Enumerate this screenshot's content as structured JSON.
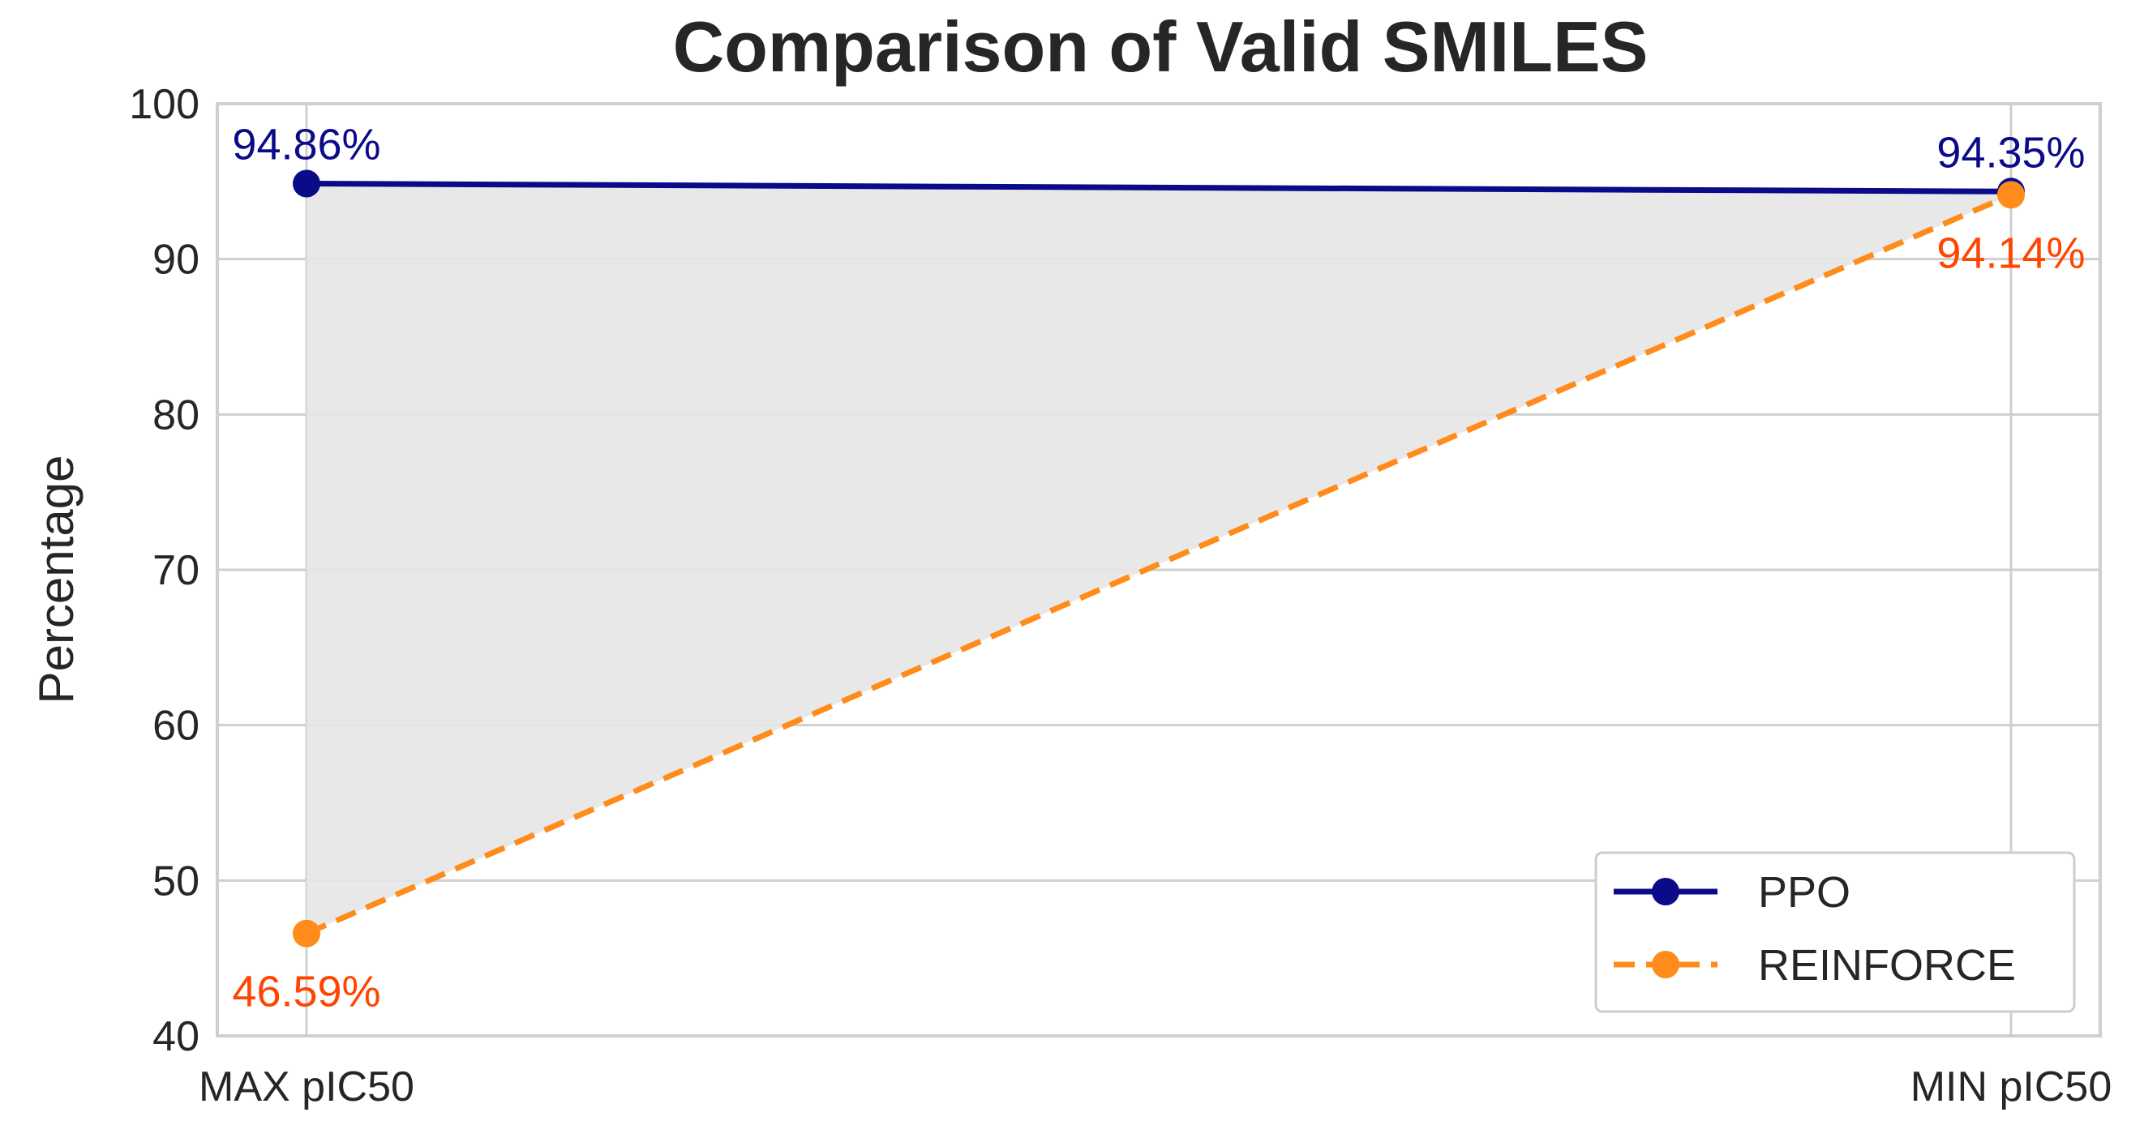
{
  "chart_data": {
    "type": "line",
    "title": "Comparison of Valid SMILES",
    "xlabel": "",
    "ylabel": "Percentage",
    "categories": [
      "MAX pIC50",
      "MIN pIC50"
    ],
    "ylim": [
      40,
      100
    ],
    "yticks": [
      40,
      50,
      60,
      70,
      80,
      90,
      100
    ],
    "grid": true,
    "legend_position": "bottom-right",
    "fill_between": {
      "color": "#e5e5e5"
    },
    "series": [
      {
        "name": "PPO",
        "values": [
          94.86,
          94.35
        ],
        "labels": [
          "94.86%",
          "94.35%"
        ],
        "color": "#0b0b8a",
        "label_color": "#0b0b8a",
        "style": "solid",
        "marker": "circle"
      },
      {
        "name": "REINFORCE",
        "values": [
          46.59,
          94.14
        ],
        "labels": [
          "46.59%",
          "94.14%"
        ],
        "color": "#ff8c1a",
        "label_color": "#ff4500",
        "style": "dashed",
        "marker": "circle"
      }
    ]
  }
}
